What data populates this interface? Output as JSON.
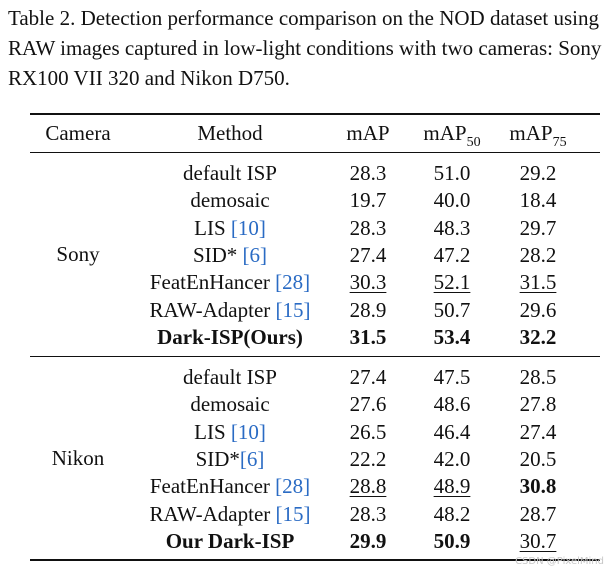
{
  "caption": "Table 2.  Detection performance comparison on the NOD dataset using RAW images captured in low-light conditions with two cameras: Sony RX100 VII 320 and Nikon D750.",
  "columns": [
    {
      "text": "Camera",
      "sub": ""
    },
    {
      "text": "Method",
      "sub": ""
    },
    {
      "text": "mAP",
      "sub": ""
    },
    {
      "text": "mAP",
      "sub": "50"
    },
    {
      "text": "mAP",
      "sub": "75"
    }
  ],
  "groups": [
    {
      "camera": "Sony",
      "rows": [
        {
          "method": "default ISP",
          "ref": "",
          "map": "28.3",
          "map50": "51.0",
          "map75": "29.2",
          "bold": [],
          "underline": []
        },
        {
          "method": "demosaic",
          "ref": "",
          "map": "19.7",
          "map50": "40.0",
          "map75": "18.4",
          "bold": [],
          "underline": []
        },
        {
          "method": "LIS ",
          "ref": "[10]",
          "map": "28.3",
          "map50": "48.3",
          "map75": "29.7",
          "bold": [],
          "underline": []
        },
        {
          "method": "SID* ",
          "ref": "[6]",
          "map": "27.4",
          "map50": "47.2",
          "map75": "28.2",
          "bold": [],
          "underline": []
        },
        {
          "method": "FeatEnHancer ",
          "ref": "[28]",
          "map": "30.3",
          "map50": "52.1",
          "map75": "31.5",
          "bold": [],
          "underline": [
            "map",
            "map50",
            "map75"
          ]
        },
        {
          "method": "RAW-Adapter ",
          "ref": "[15]",
          "map": "28.9",
          "map50": "50.7",
          "map75": "29.6",
          "bold": [],
          "underline": []
        },
        {
          "method": "Dark-ISP(Ours)",
          "ref": "",
          "map": "31.5",
          "map50": "53.4",
          "map75": "32.2",
          "bold": [
            "method",
            "map",
            "map50",
            "map75"
          ],
          "underline": []
        }
      ]
    },
    {
      "camera": "Nikon",
      "rows": [
        {
          "method": "default ISP",
          "ref": "",
          "map": "27.4",
          "map50": "47.5",
          "map75": "28.5",
          "bold": [],
          "underline": []
        },
        {
          "method": "demosaic",
          "ref": "",
          "map": "27.6",
          "map50": "48.6",
          "map75": "27.8",
          "bold": [],
          "underline": []
        },
        {
          "method": "LIS ",
          "ref": "[10]",
          "map": "26.5",
          "map50": "46.4",
          "map75": "27.4",
          "bold": [],
          "underline": []
        },
        {
          "method": "SID*",
          "ref": "[6]",
          "map": "22.2",
          "map50": "42.0",
          "map75": "20.5",
          "bold": [],
          "underline": []
        },
        {
          "method": "FeatEnHancer ",
          "ref": "[28]",
          "map": "28.8",
          "map50": "48.9",
          "map75": "30.8",
          "bold": [
            "map75"
          ],
          "underline": [
            "map",
            "map50"
          ]
        },
        {
          "method": "RAW-Adapter ",
          "ref": "[15]",
          "map": "28.3",
          "map50": "48.2",
          "map75": "28.7",
          "bold": [],
          "underline": []
        },
        {
          "method": "Our Dark-ISP",
          "ref": "",
          "map": "29.9",
          "map50": "50.9",
          "map75": "30.7",
          "bold": [
            "method",
            "map",
            "map50"
          ],
          "underline": [
            "map75"
          ]
        }
      ]
    }
  ],
  "watermark": "CSDN @PixelMind",
  "colors": {
    "text": "#111111",
    "citation": "#2a6bc4"
  }
}
